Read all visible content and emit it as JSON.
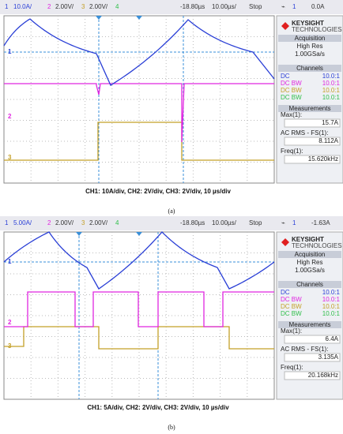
{
  "panels": [
    {
      "top_bar": {
        "ch1": "1",
        "ch1_scale": "10.0A/",
        "ch2": "2",
        "ch2_scale": "2.00V/",
        "ch3": "3",
        "ch3_scale": "2.00V/",
        "ch4": "4",
        "delay": "-18.80µs",
        "timebase": "10.00µs/",
        "mode": "Stop",
        "trig_ch": "1",
        "trig_level": "0.0A"
      },
      "markers": [
        "1",
        "2",
        "3"
      ],
      "side": {
        "brand": "KEYSIGHT",
        "brand_sub": "TECHNOLOGIES",
        "acquisition_title": "Acquisition",
        "acq_mode": "High Res",
        "sample_rate": "1.00GSa/s",
        "channels_title": "Channels",
        "channels": [
          [
            "DC",
            "10.0:1"
          ],
          [
            "DC BW",
            "10.0:1"
          ],
          [
            "DC BW",
            "10.0:1"
          ],
          [
            "DC BW",
            "10.0:1"
          ]
        ],
        "measurements_title": "Measurements",
        "measurements": [
          {
            "label": "Max(1):",
            "value": "15.7A"
          },
          {
            "label": "AC RMS - FS(1):",
            "value": "8.112A"
          },
          {
            "label": "Freq(1):",
            "value": "15.620kHz"
          }
        ]
      },
      "caption": "CH1: 10A/div, CH2: 2V/div, CH3: 2V/div, 10 µs/div",
      "label": "(a)"
    },
    {
      "top_bar": {
        "ch1": "1",
        "ch1_scale": "5.00A/",
        "ch2": "2",
        "ch2_scale": "2.00V/",
        "ch3": "3",
        "ch3_scale": "2.00V/",
        "ch4": "4",
        "delay": "-18.80µs",
        "timebase": "10.00µs/",
        "mode": "Stop",
        "trig_ch": "1",
        "trig_level": "-1.63A"
      },
      "markers": [
        "1",
        "2",
        "3"
      ],
      "side": {
        "brand": "KEYSIGHT",
        "brand_sub": "TECHNOLOGIES",
        "acquisition_title": "Acquisition",
        "acq_mode": "High Res",
        "sample_rate": "1.00GSa/s",
        "channels_title": "Channels",
        "channels": [
          [
            "DC",
            "10.0:1"
          ],
          [
            "DC BW",
            "10.0:1"
          ],
          [
            "DC BW",
            "10.0:1"
          ],
          [
            "DC BW",
            "10.0:1"
          ]
        ],
        "measurements_title": "Measurements",
        "measurements": [
          {
            "label": "Max(1):",
            "value": "6.4A"
          },
          {
            "label": "AC RMS - FS(1):",
            "value": "3.135A"
          },
          {
            "label": "Freq(1):",
            "value": "20.168kHz"
          }
        ]
      },
      "caption": "CH1: 5A/div, CH2: 2V/div, CH3: 2V/div, 10 µs/div",
      "label": "(b)"
    }
  ]
}
